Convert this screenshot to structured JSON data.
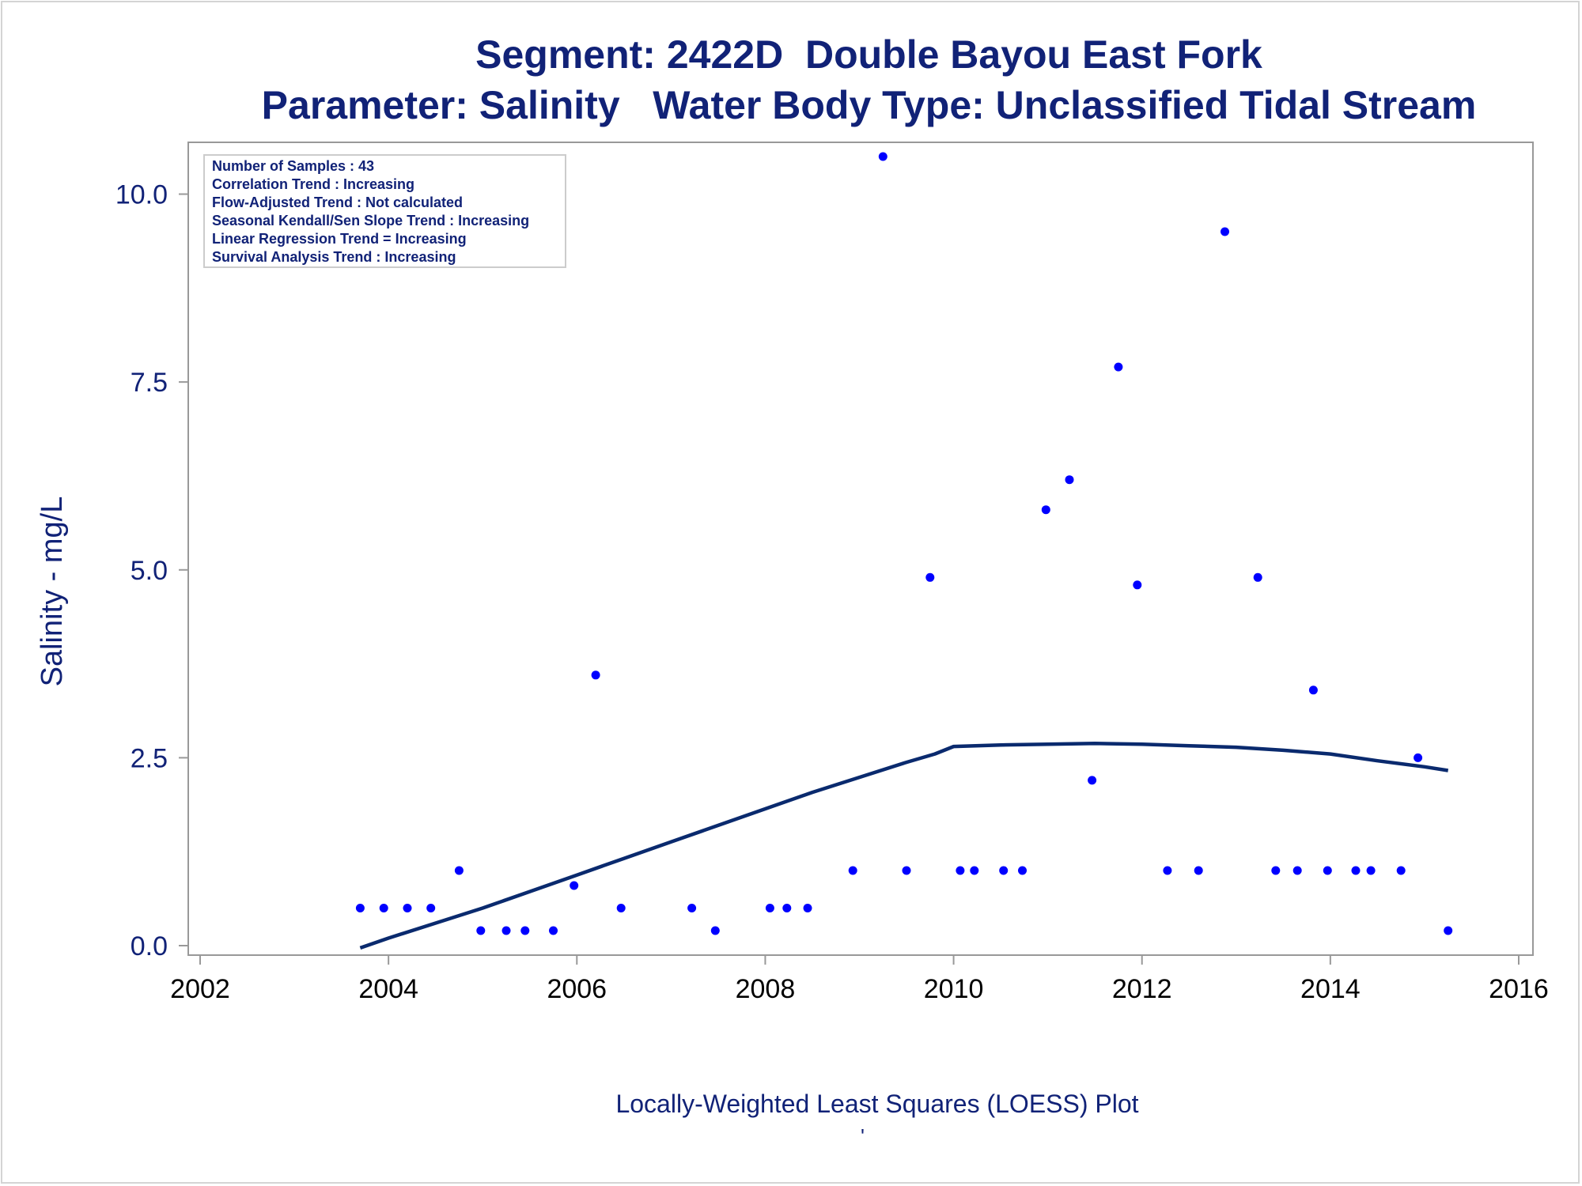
{
  "title_line1": "Segment: 2422D  Double Bayou East Fork",
  "title_line2": "Parameter: Salinity   Water Body Type: Unclassified Tidal Stream",
  "footnote": "Locally-Weighted Least Squares (LOESS) Plot",
  "footnote_mark": "'",
  "info_box": [
    "Number of Samples : 43",
    "Correlation Trend : Increasing",
    "Flow-Adjusted Trend : Not calculated",
    "Seasonal Kendall/Sen Slope Trend : Increasing",
    "Linear Regression Trend = Increasing",
    "Survival Analysis Trend : Increasing"
  ],
  "colors": {
    "text": "#112277",
    "points": "#0000ff",
    "line": "#0a2a6e",
    "axis": "#999999"
  },
  "chart_data": {
    "type": "scatter",
    "ylabel": "Salinity - mg/L",
    "xlabel": "",
    "xlim": [
      2002,
      2016
    ],
    "ylim": [
      0,
      10.5
    ],
    "x_ticks": [
      2002,
      2004,
      2006,
      2008,
      2010,
      2012,
      2014,
      2016
    ],
    "x_tick_labels": [
      "2002",
      "2004",
      "2006",
      "2008",
      "2010",
      "2012",
      "2014",
      "2016"
    ],
    "y_ticks": [
      0,
      2.5,
      5,
      7.5,
      10
    ],
    "y_tick_labels": [
      "0.0",
      "2.5",
      "5.0",
      "7.5",
      "10.0"
    ],
    "grid": false,
    "legend": "none",
    "series": [
      {
        "type": "scatter",
        "points": [
          [
            2003.7,
            0.5
          ],
          [
            2003.95,
            0.5
          ],
          [
            2004.2,
            0.5
          ],
          [
            2004.45,
            0.5
          ],
          [
            2004.75,
            1.0
          ],
          [
            2004.98,
            0.2
          ],
          [
            2005.25,
            0.2
          ],
          [
            2005.45,
            0.2
          ],
          [
            2005.75,
            0.2
          ],
          [
            2005.97,
            0.8
          ],
          [
            2006.2,
            3.6
          ],
          [
            2006.47,
            0.5
          ],
          [
            2007.22,
            0.5
          ],
          [
            2007.47,
            0.2
          ],
          [
            2008.05,
            0.5
          ],
          [
            2008.23,
            0.5
          ],
          [
            2008.45,
            0.5
          ],
          [
            2008.93,
            1.0
          ],
          [
            2009.25,
            10.5
          ],
          [
            2009.5,
            1.0
          ],
          [
            2009.75,
            4.9
          ],
          [
            2010.07,
            1.0
          ],
          [
            2010.22,
            1.0
          ],
          [
            2010.53,
            1.0
          ],
          [
            2010.73,
            1.0
          ],
          [
            2010.98,
            5.8
          ],
          [
            2011.23,
            6.2
          ],
          [
            2011.47,
            2.2
          ],
          [
            2011.75,
            7.7
          ],
          [
            2011.95,
            4.8
          ],
          [
            2012.27,
            1.0
          ],
          [
            2012.6,
            1.0
          ],
          [
            2012.88,
            9.5
          ],
          [
            2013.23,
            4.9
          ],
          [
            2013.42,
            1.0
          ],
          [
            2013.65,
            1.0
          ],
          [
            2013.82,
            3.4
          ],
          [
            2013.97,
            1.0
          ],
          [
            2014.27,
            1.0
          ],
          [
            2014.43,
            1.0
          ],
          [
            2014.75,
            1.0
          ],
          [
            2014.93,
            2.5
          ],
          [
            2015.25,
            0.2
          ]
        ]
      },
      {
        "type": "line",
        "points": [
          [
            2003.7,
            -0.03
          ],
          [
            2004.0,
            0.1
          ],
          [
            2004.5,
            0.3
          ],
          [
            2005.0,
            0.5
          ],
          [
            2005.5,
            0.72
          ],
          [
            2006.0,
            0.94
          ],
          [
            2006.5,
            1.16
          ],
          [
            2007.0,
            1.38
          ],
          [
            2007.5,
            1.6
          ],
          [
            2008.0,
            1.82
          ],
          [
            2008.5,
            2.04
          ],
          [
            2009.0,
            2.24
          ],
          [
            2009.5,
            2.44
          ],
          [
            2009.8,
            2.55
          ],
          [
            2010.0,
            2.65
          ],
          [
            2010.5,
            2.67
          ],
          [
            2011.0,
            2.68
          ],
          [
            2011.5,
            2.69
          ],
          [
            2012.0,
            2.68
          ],
          [
            2012.5,
            2.66
          ],
          [
            2013.0,
            2.64
          ],
          [
            2013.5,
            2.6
          ],
          [
            2014.0,
            2.55
          ],
          [
            2014.5,
            2.46
          ],
          [
            2015.0,
            2.38
          ],
          [
            2015.25,
            2.33
          ]
        ]
      }
    ]
  }
}
